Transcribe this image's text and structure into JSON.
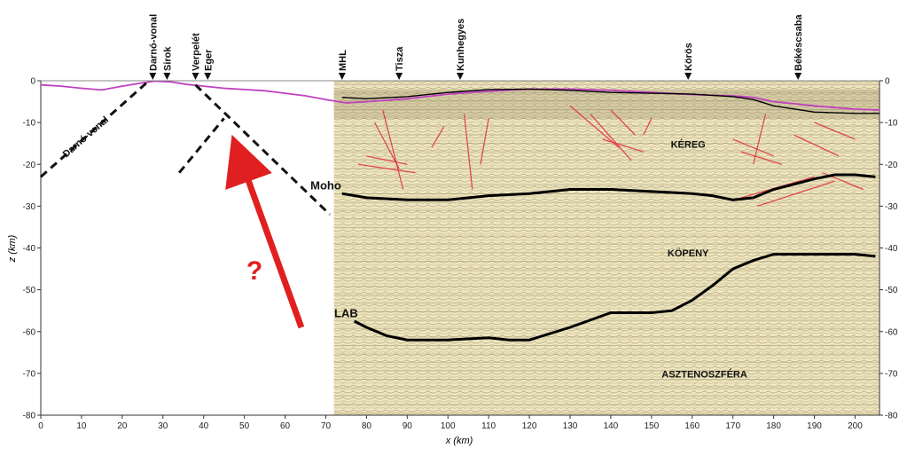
{
  "chart_data": {
    "type": "line",
    "xlabel": "x (km)",
    "ylabel": "z (km)",
    "xlim": [
      0,
      206
    ],
    "ylim": [
      -80,
      0
    ],
    "x_ticks": [
      0,
      10,
      20,
      30,
      40,
      50,
      60,
      70,
      80,
      90,
      100,
      110,
      120,
      130,
      140,
      150,
      160,
      170,
      180,
      190,
      200
    ],
    "y_ticks": [
      0,
      -10,
      -20,
      -30,
      -40,
      -50,
      -60,
      -70,
      -80
    ],
    "grid": false,
    "seismic_section_start_x": 72,
    "stations": [
      {
        "name": "Darnó-vonal",
        "x": 27.5
      },
      {
        "name": "Sirok",
        "x": 31
      },
      {
        "name": "Verpelét",
        "x": 38
      },
      {
        "name": "Eger",
        "x": 41
      },
      {
        "name": "MHL",
        "x": 74
      },
      {
        "name": "Tisza",
        "x": 88
      },
      {
        "name": "Kunhegyes",
        "x": 103
      },
      {
        "name": "Körös",
        "x": 159
      },
      {
        "name": "Békéscsaba",
        "x": 186
      }
    ],
    "series": [
      {
        "name": "topography",
        "color": "#c040c0",
        "x": [
          0,
          5,
          10,
          15,
          20,
          25,
          28,
          32,
          36,
          40,
          45,
          50,
          55,
          60,
          65,
          70,
          75,
          80,
          90,
          100,
          110,
          120,
          130,
          140,
          150,
          160,
          170,
          175,
          180,
          185,
          190,
          200,
          206
        ],
        "y": [
          -1,
          -1.3,
          -1.8,
          -2.2,
          -1.3,
          -0.5,
          -0.1,
          -0.3,
          -0.9,
          -1.3,
          -1.8,
          -2.1,
          -2.4,
          -3,
          -3.6,
          -4.5,
          -5.3,
          -5,
          -4.3,
          -3.2,
          -2.5,
          -2,
          -2,
          -2.3,
          -2.8,
          -3.3,
          -3.6,
          -4,
          -5,
          -5.5,
          -6,
          -6.8,
          -7
        ]
      },
      {
        "name": "Moho",
        "x": [
          74,
          80,
          90,
          100,
          110,
          120,
          130,
          140,
          150,
          160,
          165,
          170,
          175,
          180,
          190,
          195,
          200,
          205
        ],
        "y": [
          -27,
          -28,
          -28.5,
          -28.5,
          -27.5,
          -27,
          -26,
          -26,
          -26.5,
          -27,
          -27.5,
          -28.5,
          -28,
          -26,
          -23.5,
          -22.5,
          -22.5,
          -23
        ]
      },
      {
        "name": "LAB",
        "x": [
          77,
          80,
          85,
          90,
          100,
          110,
          115,
          120,
          130,
          140,
          150,
          155,
          160,
          165,
          170,
          175,
          180,
          185,
          190,
          195,
          200,
          205
        ],
        "y": [
          -57.5,
          -59,
          -61,
          -62,
          -62,
          -61.5,
          -62,
          -62,
          -59,
          -55.5,
          -55.5,
          -55,
          -52.5,
          -49,
          -45,
          -43,
          -41.5,
          -41.5,
          -41.5,
          -41.5,
          -41.5,
          -42
        ]
      },
      {
        "name": "upper crust reflector",
        "x": [
          74,
          80,
          90,
          100,
          110,
          120,
          130,
          140,
          150,
          160,
          170,
          175,
          180,
          190,
          200,
          206
        ],
        "y": [
          -4,
          -4.3,
          -3.8,
          -2.8,
          -2.1,
          -2,
          -2.3,
          -2.8,
          -3,
          -3.2,
          -3.8,
          -4.5,
          -6,
          -7.5,
          -7.8,
          -7.8
        ]
      }
    ],
    "dashed_lines": [
      {
        "x": [
          0,
          26
        ],
        "y": [
          -23,
          -0.5
        ]
      },
      {
        "x": [
          38,
          71
        ],
        "y": [
          -1,
          -32
        ]
      },
      {
        "x": [
          34,
          45
        ],
        "y": [
          -22,
          -9
        ]
      }
    ],
    "annotations": [
      {
        "text": "Darnó-vonal",
        "x": 11.5,
        "y": -14,
        "rotation": -41
      },
      {
        "text": "Moho",
        "x": 70,
        "y": -26
      },
      {
        "text": "LAB",
        "x": 75,
        "y": -56.5
      },
      {
        "text": "KÉREG",
        "x": 159,
        "y": -16
      },
      {
        "text": "KÖPENY",
        "x": 159,
        "y": -42
      },
      {
        "text": "ASZTENOSZFÉRA",
        "x": 163,
        "y": -71
      },
      {
        "text": "?",
        "x": 52.5,
        "y": -47.5
      }
    ],
    "arrow": {
      "color": "#e02020",
      "from": [
        64,
        -59
      ],
      "to": [
        49,
        -18.5
      ]
    }
  }
}
